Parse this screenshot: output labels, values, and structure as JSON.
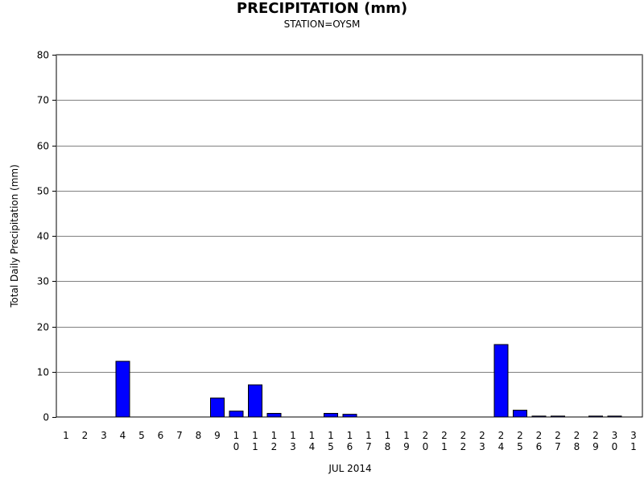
{
  "chart_data": {
    "type": "bar",
    "title": "PRECIPITATION (mm)",
    "subtitle": "STATION=OYSM",
    "ylabel": "Total Daily Precipitation (mm)",
    "xlabel": "JUL 2014",
    "ylim": [
      0,
      80
    ],
    "yticks": [
      0,
      10,
      20,
      30,
      40,
      50,
      60,
      70,
      80
    ],
    "grid": true,
    "bar_color": "#0000ff",
    "categories": [
      "1",
      "2",
      "3",
      "4",
      "5",
      "6",
      "7",
      "8",
      "9",
      "10",
      "11",
      "12",
      "13",
      "14",
      "15",
      "16",
      "17",
      "18",
      "19",
      "20",
      "21",
      "22",
      "23",
      "24",
      "25",
      "26",
      "27",
      "28",
      "29",
      "30",
      "31"
    ],
    "values": [
      0,
      0,
      0,
      12.3,
      0,
      0,
      0,
      0,
      4.2,
      1.3,
      7.1,
      0.8,
      0,
      0,
      0.8,
      0.6,
      0,
      0,
      0,
      0,
      0,
      0,
      0,
      16.0,
      1.5,
      0.2,
      0.2,
      0,
      0.2,
      0.2,
      0
    ]
  }
}
